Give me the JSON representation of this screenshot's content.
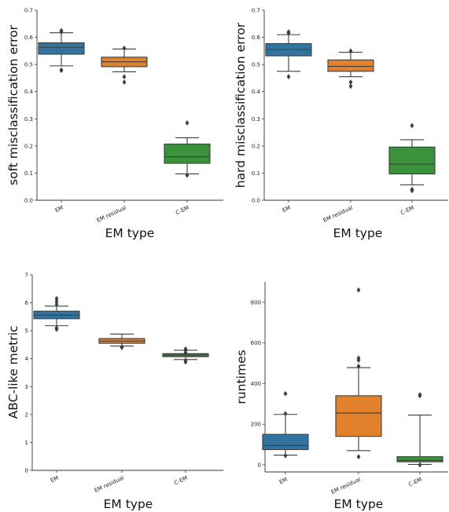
{
  "chart_data": [
    {
      "type": "box",
      "ylabel": "soft misclassification error",
      "xlabel": "EM type",
      "categories": [
        "EM",
        "EM residual",
        "C-EM"
      ],
      "ylim": [
        0,
        0.7
      ],
      "yticks": [
        "0.0",
        "0.1",
        "0.2",
        "0.3",
        "0.4",
        "0.5",
        "0.6",
        "0.7"
      ],
      "boxes": [
        {
          "name": "EM",
          "color": "#3274a1",
          "whislo": 0.495,
          "q1": 0.538,
          "med": 0.563,
          "q3": 0.58,
          "whishi": 0.617,
          "fliers": [
            0.48,
            0.478,
            0.62,
            0.625
          ]
        },
        {
          "name": "EM residual",
          "color": "#e1812c",
          "whislo": 0.473,
          "q1": 0.492,
          "med": 0.51,
          "q3": 0.527,
          "whishi": 0.557,
          "fliers": [
            0.455,
            0.435,
            0.56
          ]
        },
        {
          "name": "C-EM",
          "color": "#3a923a",
          "whislo": 0.097,
          "q1": 0.136,
          "med": 0.16,
          "q3": 0.207,
          "whishi": 0.23,
          "fliers": [
            0.092,
            0.285
          ]
        }
      ]
    },
    {
      "type": "box",
      "ylabel": "hard misclassification error",
      "xlabel": "EM type",
      "categories": [
        "EM",
        "EM residual",
        "C-EM"
      ],
      "ylim": [
        0,
        0.7
      ],
      "yticks": [
        "0.0",
        "0.1",
        "0.2",
        "0.3",
        "0.4",
        "0.5",
        "0.6",
        "0.7"
      ],
      "boxes": [
        {
          "name": "EM",
          "color": "#3274a1",
          "whislo": 0.475,
          "q1": 0.532,
          "med": 0.555,
          "q3": 0.577,
          "whishi": 0.61,
          "fliers": [
            0.455,
            0.62,
            0.615
          ]
        },
        {
          "name": "EM residual",
          "color": "#e1812c",
          "whislo": 0.455,
          "q1": 0.475,
          "med": 0.493,
          "q3": 0.517,
          "whishi": 0.545,
          "fliers": [
            0.435,
            0.42,
            0.55
          ]
        },
        {
          "name": "C-EM",
          "color": "#3a923a",
          "whislo": 0.057,
          "q1": 0.097,
          "med": 0.133,
          "q3": 0.196,
          "whishi": 0.223,
          "fliers": [
            0.04,
            0.035,
            0.275
          ]
        }
      ]
    },
    {
      "type": "box",
      "ylabel": "ABC-like metric",
      "xlabel": "EM type",
      "categories": [
        "EM",
        "EM residual",
        "C-EM"
      ],
      "ylim": [
        0,
        7
      ],
      "yticks": [
        "0",
        "1",
        "2",
        "3",
        "4",
        "5",
        "6",
        "7"
      ],
      "boxes": [
        {
          "name": "EM",
          "color": "#3274a1",
          "whislo": 5.18,
          "q1": 5.43,
          "med": 5.56,
          "q3": 5.7,
          "whishi": 5.88,
          "fliers": [
            5.1,
            5.05,
            5.95,
            6.05,
            6.15
          ]
        },
        {
          "name": "EM residual",
          "color": "#e1812c",
          "whislo": 4.45,
          "q1": 4.55,
          "med": 4.63,
          "q3": 4.72,
          "whishi": 4.88,
          "fliers": [
            4.42,
            4.4
          ]
        },
        {
          "name": "C-EM",
          "color": "#3a923a",
          "whislo": 3.97,
          "q1": 4.07,
          "med": 4.13,
          "q3": 4.18,
          "whishi": 4.3,
          "fliers": [
            3.93,
            3.88,
            4.22,
            4.3,
            4.35
          ]
        }
      ]
    },
    {
      "type": "box",
      "ylabel": "runtimes",
      "xlabel": "EM type",
      "categories": [
        "EM",
        "EM residual",
        "C-EM"
      ],
      "ylim": [
        -35,
        900
      ],
      "yticks": [
        "0",
        "200",
        "400",
        "600",
        "800"
      ],
      "ytick_values": [
        0,
        200,
        400,
        600,
        800
      ],
      "boxes": [
        {
          "name": "EM",
          "color": "#3274a1",
          "whislo": 48,
          "q1": 75,
          "med": 95,
          "q3": 150,
          "whishi": 248,
          "fliers": [
            45,
            252,
            350
          ]
        },
        {
          "name": "EM residual",
          "color": "#e1812c",
          "whislo": 70,
          "q1": 140,
          "med": 255,
          "q3": 340,
          "whishi": 478,
          "fliers": [
            40,
            485,
            515,
            525,
            860
          ]
        },
        {
          "name": "C-EM",
          "color": "#3a923a",
          "whislo": 2,
          "q1": 15,
          "med": 22,
          "q3": 40,
          "whishi": 245,
          "fliers": [
            0,
            340,
            345
          ]
        }
      ]
    }
  ]
}
